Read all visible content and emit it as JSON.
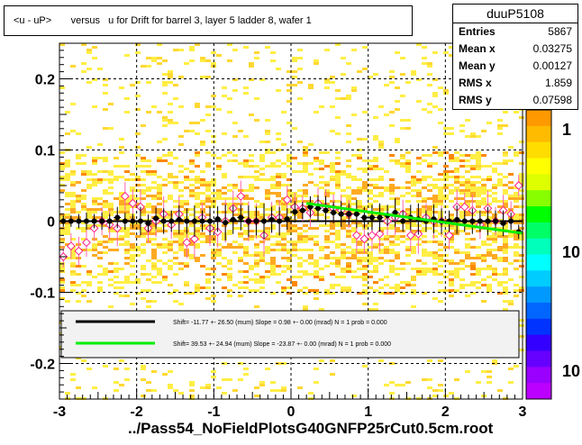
{
  "header": {
    "title": "<u - uP>       versus   u for Drift for barrel 3, layer 5 ladder 8, wafer 1"
  },
  "stats": {
    "name": "duuP5108",
    "rows": [
      {
        "label": "Entries",
        "value": "5867"
      },
      {
        "label": "Mean x",
        "value": "0.03275"
      },
      {
        "label": "Mean y",
        "value": "0.00127"
      },
      {
        "label": "RMS x",
        "value": "1.859"
      },
      {
        "label": "RMS y",
        "value": "0.07598"
      }
    ]
  },
  "legend": {
    "entries": [
      {
        "color": "#000000",
        "text": "Shift=   -11.77 +- 26.50 (mum) Slope =    0.98 +- 0.00 (mrad)  N = 1 prob = 0.000"
      },
      {
        "color": "#00ee00",
        "text": "Shift=   39.53 +- 24.94 (mum) Slope =  -23.87 +- 0.00 (mrad)  N = 1 prob = 0.000"
      }
    ]
  },
  "footer": {
    "filename": "../Pass54_NoFieldPlotsG40GNFP25rCut0.5cm.root"
  },
  "chart_data": {
    "type": "heatmap",
    "xlim": [
      -3,
      3
    ],
    "ylim": [
      -0.25,
      0.25
    ],
    "x_ticks": [
      -3,
      -2,
      -1,
      0,
      1,
      2,
      3
    ],
    "y_ticks": [
      -0.2,
      -0.1,
      0,
      0.1,
      0.2
    ],
    "x_tick_labels": [
      "-3",
      "-2",
      "-1",
      "0",
      "1",
      "2",
      "3"
    ],
    "y_tick_labels": [
      "-0.2",
      "-0.1",
      "0",
      "0.1",
      "0.2"
    ],
    "grid": true,
    "colorbar_labels": [
      "1",
      "10",
      "10"
    ],
    "profile_black": {
      "x": [
        -2.95,
        -2.85,
        -2.75,
        -2.65,
        -2.55,
        -2.45,
        -2.35,
        -2.25,
        -2.15,
        -2.05,
        -1.95,
        -1.85,
        -1.75,
        -1.65,
        -1.55,
        -1.45,
        -1.35,
        -1.25,
        -1.15,
        -1.05,
        -0.95,
        -0.85,
        -0.75,
        -0.65,
        -0.55,
        -0.45,
        -0.35,
        -0.25,
        -0.15,
        -0.05,
        0.05,
        0.15,
        0.25,
        0.35,
        0.45,
        0.55,
        0.65,
        0.75,
        0.85,
        0.95,
        1.05,
        1.15,
        1.25,
        1.35,
        1.45,
        1.55,
        1.65,
        1.75,
        1.85,
        1.95,
        2.05,
        2.15,
        2.25,
        2.35,
        2.45,
        2.55,
        2.65,
        2.75,
        2.85,
        2.95
      ],
      "y": [
        0.0,
        0.0,
        0.0,
        0.0,
        0.0,
        0.0,
        0.0,
        0.005,
        0.0,
        0.0,
        0.0,
        -0.003,
        0.004,
        0.0,
        0.0,
        0.002,
        0.0,
        0.0,
        0.0,
        0.0,
        0.003,
        -0.002,
        0.002,
        0.005,
        0.0,
        0.0,
        0.0,
        0.002,
        0.0,
        0.003,
        0.013,
        0.015,
        0.02,
        0.018,
        0.015,
        0.012,
        0.01,
        0.01,
        0.01,
        0.005,
        0.005,
        0.005,
        0.008,
        0.012,
        0.0,
        0.005,
        0.003,
        0.0,
        0.003,
        0.0,
        0.0,
        0.002,
        0.0,
        0.0,
        0.0,
        0.0,
        0.0,
        -0.003,
        0.0,
        -0.015
      ],
      "err": [
        0.008,
        0.008,
        0.01,
        0.012,
        0.01,
        0.012,
        0.01,
        0.015,
        0.012,
        0.01,
        0.02,
        0.012,
        0.015,
        0.018,
        0.015,
        0.02,
        0.018,
        0.022,
        0.015,
        0.02,
        0.018,
        0.025,
        0.02,
        0.018,
        0.022,
        0.02,
        0.025,
        0.018,
        0.02,
        0.015,
        0.015,
        0.012,
        0.015,
        0.018,
        0.02,
        0.015,
        0.018,
        0.015,
        0.02,
        0.015,
        0.018,
        0.02,
        0.015,
        0.02,
        0.015,
        0.018,
        0.022,
        0.015,
        0.02,
        0.018,
        0.015,
        0.02,
        0.015,
        0.018,
        0.015,
        0.02,
        0.015,
        0.018,
        0.012,
        0.01
      ]
    },
    "profile_open": {
      "x": [
        -2.95,
        -2.85,
        -2.75,
        -2.65,
        -2.55,
        -2.45,
        -2.35,
        -2.25,
        -2.15,
        -2.05,
        -1.95,
        -1.85,
        -1.75,
        -1.65,
        -1.55,
        -1.45,
        -1.35,
        -1.25,
        -1.15,
        -1.05,
        -0.95,
        -0.85,
        -0.75,
        -0.65,
        -0.55,
        -0.45,
        -0.35,
        -0.25,
        -0.15,
        -0.05,
        0.05,
        0.15,
        0.25,
        0.35,
        0.45,
        0.55,
        0.65,
        0.75,
        0.85,
        0.95,
        1.05,
        1.15,
        1.25,
        1.35,
        1.45,
        1.55,
        1.65,
        1.75,
        1.85,
        1.95,
        2.05,
        2.15,
        2.25,
        2.35,
        2.45,
        2.55,
        2.65,
        2.75,
        2.85,
        2.95
      ],
      "y": [
        -0.05,
        -0.035,
        -0.042,
        -0.03,
        -0.01,
        0.0,
        -0.005,
        -0.01,
        0.035,
        0.025,
        0.02,
        -0.01,
        0.0,
        0.01,
        -0.005,
        0.01,
        -0.03,
        -0.025,
        0.005,
        -0.01,
        -0.015,
        0.0,
        0.018,
        0.035,
        0.0,
        0.0,
        -0.02,
        0.005,
        0.005,
        0.03,
        0.02,
        0.018,
        0.012,
        0.025,
        0.02,
        0.018,
        0.015,
        0.01,
        -0.02,
        -0.025,
        -0.02,
        -0.018,
        0.0,
        0.005,
        0.01,
        -0.02,
        -0.018,
        0.005,
        0.0,
        0.0,
        -0.02,
        0.02,
        0.02,
        0.015,
        -0.005,
        0.018,
        0.0,
        0.015,
        0.01,
        0.05
      ],
      "err": [
        0.015,
        0.018,
        0.02,
        0.02,
        0.018,
        0.02,
        0.02,
        0.025,
        0.02,
        0.02,
        0.025,
        0.02,
        0.022,
        0.025,
        0.02,
        0.025,
        0.022,
        0.028,
        0.02,
        0.025,
        0.022,
        0.03,
        0.025,
        0.022,
        0.028,
        0.025,
        0.03,
        0.022,
        0.025,
        0.02,
        0.02,
        0.018,
        0.02,
        0.022,
        0.025,
        0.02,
        0.022,
        0.02,
        0.025,
        0.02,
        0.022,
        0.025,
        0.02,
        0.025,
        0.02,
        0.022,
        0.028,
        0.02,
        0.025,
        0.022,
        0.02,
        0.025,
        0.02,
        0.022,
        0.02,
        0.025,
        0.02,
        0.022,
        0.018,
        0.015
      ]
    },
    "fit_black": {
      "x": [
        -3,
        3
      ],
      "y": [
        0.0,
        0.0
      ]
    },
    "fit_green": {
      "x": [
        0.2,
        3
      ],
      "y": [
        0.025,
        -0.017
      ]
    }
  }
}
